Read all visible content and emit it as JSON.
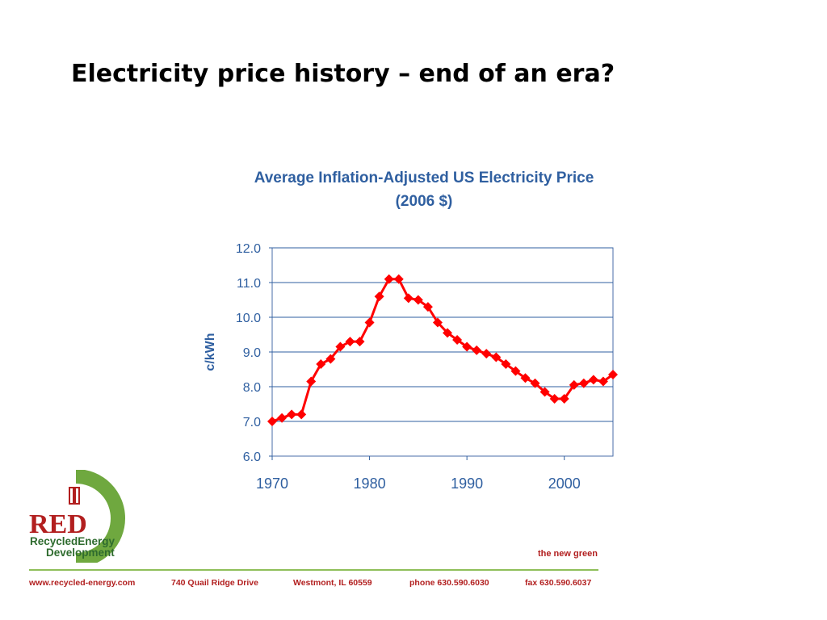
{
  "slide": {
    "title": "Electricity price history – end of an era?"
  },
  "chart_data": {
    "type": "line",
    "title_line1": "Average Inflation-Adjusted  US Electricity Price",
    "title_line2": "(2006 $)",
    "xlabel": "",
    "ylabel": "c/kWh",
    "xlim": [
      1970,
      2005
    ],
    "ylim": [
      6.0,
      12.0
    ],
    "x_ticks": [
      1970,
      1980,
      1990,
      2000
    ],
    "y_ticks": [
      "6.0",
      "7.0",
      "8.0",
      "9.0",
      "10.0",
      "11.0",
      "12.0"
    ],
    "grid": true,
    "legend": "none",
    "series": [
      {
        "color": "#ff0000",
        "marker": "diamond",
        "x": [
          1970,
          1971,
          1972,
          1973,
          1974,
          1975,
          1976,
          1977,
          1978,
          1979,
          1980,
          1981,
          1982,
          1983,
          1984,
          1985,
          1986,
          1987,
          1988,
          1989,
          1990,
          1991,
          1992,
          1993,
          1994,
          1995,
          1996,
          1997,
          1998,
          1999,
          2000,
          2001,
          2002,
          2003,
          2004,
          2005
        ],
        "values": [
          7.0,
          7.1,
          7.2,
          7.2,
          8.15,
          8.65,
          8.8,
          9.15,
          9.3,
          9.3,
          9.85,
          10.6,
          11.1,
          11.1,
          10.55,
          10.5,
          10.3,
          9.85,
          9.55,
          9.35,
          9.15,
          9.05,
          8.95,
          8.85,
          8.65,
          8.45,
          8.25,
          8.1,
          7.85,
          7.65,
          7.65,
          8.05,
          8.1,
          8.2,
          8.15,
          8.35
        ]
      }
    ]
  },
  "logo": {
    "line1": "RecycledEnergy",
    "line2": "Development"
  },
  "tagline": "the new green",
  "footer": {
    "website": "www.recycled-energy.com",
    "address": "740 Quail Ridge Drive",
    "city": "Westmont, IL 60559",
    "phone": "phone 630.590.6030",
    "fax": "fax 630.590.6037"
  },
  "colors": {
    "title_blue": "#2f5fa0",
    "series_red": "#ff0000",
    "brand_red": "#b21f1f",
    "brand_green": "#2e6b2e"
  }
}
